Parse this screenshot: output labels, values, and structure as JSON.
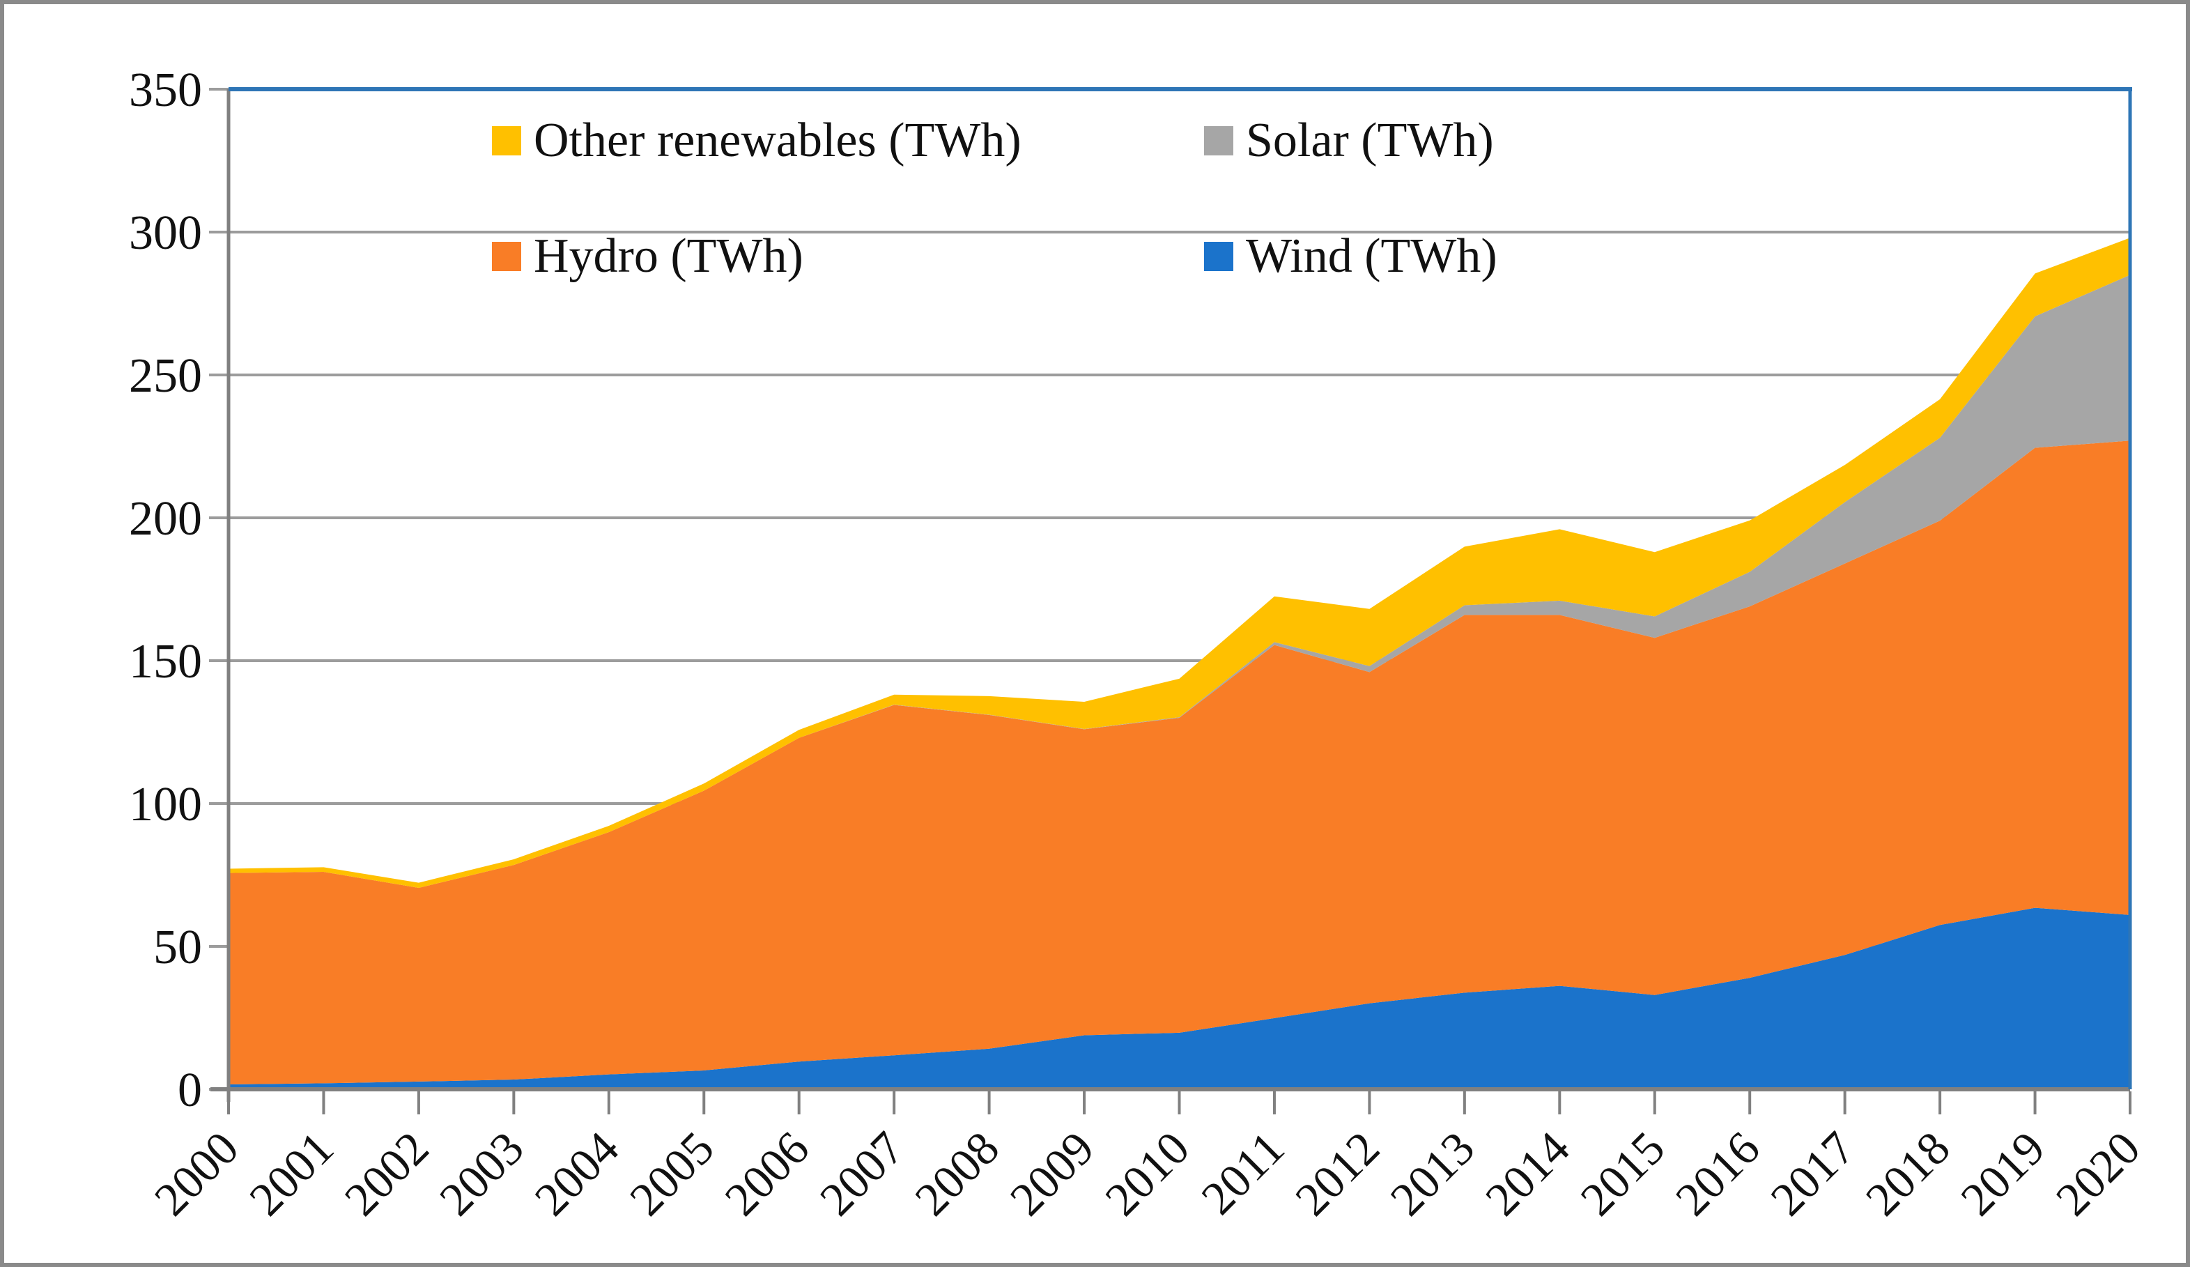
{
  "figure": {
    "kind": "stacked-area-chart-screenshot",
    "background": "#ffffff",
    "outer_border_color": "#8a8a8a"
  },
  "chart_data": {
    "type": "area",
    "stacked": true,
    "title": "",
    "xlabel": "",
    "ylabel": "",
    "x": [
      2000,
      2001,
      2002,
      2003,
      2004,
      2005,
      2006,
      2007,
      2008,
      2009,
      2010,
      2011,
      2012,
      2013,
      2014,
      2015,
      2016,
      2017,
      2018,
      2019,
      2020
    ],
    "series": [
      {
        "name": "Wind (TWh)",
        "color": "#1b73cb",
        "values": [
          1.7,
          2.1,
          2.7,
          3.4,
          5.2,
          6.6,
          9.7,
          11.9,
          14.2,
          18.9,
          19.8,
          24.9,
          30.1,
          33.8,
          36.2,
          33.0,
          39.0,
          47.0,
          57.5,
          63.5,
          61.0
        ]
      },
      {
        "name": "Hydro (TWh)",
        "color": "#f97d26",
        "values": [
          74.0,
          74.0,
          67.8,
          75.1,
          84.8,
          97.9,
          113.3,
          122.6,
          116.8,
          107.1,
          110.2,
          130.6,
          115.9,
          132.2,
          129.8,
          125.0,
          130.0,
          137.0,
          141.5,
          161.0,
          166.0
        ]
      },
      {
        "name": "Solar (TWh)",
        "color": "#a6a6a6",
        "values": [
          0.0,
          0.0,
          0.0,
          0.0,
          0.0,
          0.0,
          0.0,
          0.1,
          0.1,
          0.1,
          0.2,
          1.0,
          2.1,
          3.4,
          5.0,
          7.5,
          12.1,
          21.5,
          29.0,
          46.0,
          58.0
        ]
      },
      {
        "name": "Other renewables (TWh)",
        "color": "#ffc000",
        "values": [
          1.5,
          1.6,
          1.8,
          2.0,
          2.2,
          2.5,
          2.8,
          3.5,
          6.5,
          9.5,
          13.5,
          16.0,
          20.0,
          20.5,
          25.0,
          22.5,
          18.0,
          13.0,
          13.5,
          15.0,
          13.0
        ]
      }
    ],
    "legend_order": [
      3,
      2,
      1,
      0
    ],
    "legend_position": "top-center",
    "ylim": [
      0,
      350
    ],
    "ytick_step": 50,
    "grid": true,
    "colors": {
      "gridline": "#9c9c9c",
      "axis": "#808080",
      "plot_border_top_right": "#2e75b6",
      "tick": "#808080",
      "label_text": "#111111"
    }
  }
}
